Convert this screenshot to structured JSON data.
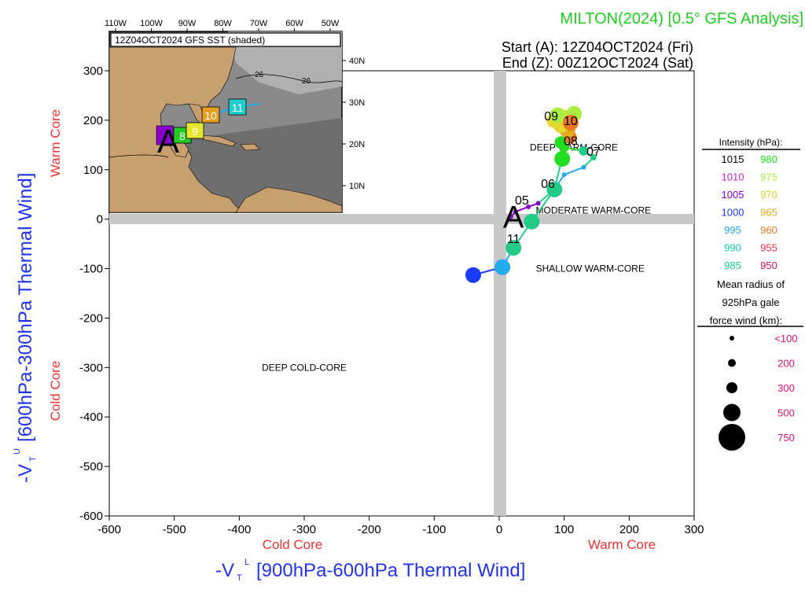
{
  "header": {
    "title": "MILTON(2024) [0.5° GFS Analysis]",
    "start": "Start (A): 12Z04OCT2024 (Fri)",
    "end": "End (Z): 00Z12OCT2024 (Sat)"
  },
  "colors": {
    "title": "#22cc22",
    "axis_title": "#2233ee",
    "core_label": "#ee3333",
    "legend_value": "#dd1177",
    "grid_band": "#c8c8c8"
  },
  "chart_data": {
    "type": "scatter",
    "title": "MILTON(2024) [0.5° GFS Analysis]",
    "xlabel": "-V_T^L [900hPa-600hPa Thermal Wind]",
    "ylabel": "-V_T^U [600hPa-300hPa Thermal Wind]",
    "xlim": [
      -600,
      300
    ],
    "ylim": [
      -600,
      300
    ],
    "xticks": [
      -600,
      -500,
      -400,
      -300,
      -200,
      -100,
      0,
      100,
      200,
      300
    ],
    "yticks": [
      -600,
      -500,
      -400,
      -300,
      -200,
      -100,
      0,
      100,
      200,
      300
    ],
    "x_side_labels": {
      "left": "Cold Core",
      "right": "Warm Core"
    },
    "y_side_labels": {
      "top": "Warm Core",
      "bottom": "Cold Core"
    },
    "regions": [
      {
        "label": "DEEP WARM-CORE",
        "x": 115,
        "y": 145
      },
      {
        "label": "MODERATE WARM-CORE",
        "x": 145,
        "y": 18
      },
      {
        "label": "SHALLOW WARM-CORE",
        "x": 140,
        "y": -100
      },
      {
        "label": "DEEP COLD-CORE",
        "x": -300,
        "y": -300
      }
    ],
    "track": [
      {
        "x": 18,
        "y": 5,
        "p": 1005,
        "r": 50
      },
      {
        "x": 25,
        "y": 15,
        "p": 1005,
        "r": 50
      },
      {
        "x": 45,
        "y": 25,
        "p": 1005,
        "r": 50
      },
      {
        "x": 60,
        "y": 32,
        "p": 1005,
        "r": 50
      },
      {
        "x": 85,
        "y": 60,
        "p": 985,
        "r": 300
      },
      {
        "x": 100,
        "y": 90,
        "p": 995,
        "r": 50
      },
      {
        "x": 130,
        "y": 105,
        "p": 995,
        "r": 80
      },
      {
        "x": 145,
        "y": 125,
        "p": 985,
        "r": 100
      },
      {
        "x": 130,
        "y": 138,
        "p": 985,
        "r": 200
      },
      {
        "x": 100,
        "y": 145,
        "p": 980,
        "r": 200
      },
      {
        "x": 97,
        "y": 122,
        "p": 980,
        "r": 500
      },
      {
        "x": 95,
        "y": 155,
        "p": 980,
        "r": 300
      },
      {
        "x": 110,
        "y": 165,
        "p": 960,
        "r": 300
      },
      {
        "x": 105,
        "y": 180,
        "p": 965,
        "r": 500
      },
      {
        "x": 95,
        "y": 190,
        "p": 970,
        "r": 500
      },
      {
        "x": 85,
        "y": 200,
        "p": 970,
        "r": 500
      },
      {
        "x": 100,
        "y": 205,
        "p": 970,
        "r": 500
      },
      {
        "x": 115,
        "y": 213,
        "p": 975,
        "r": 500
      },
      {
        "x": 90,
        "y": 210,
        "p": 975,
        "r": 500
      },
      {
        "x": 110,
        "y": 195,
        "p": 960,
        "r": 500
      },
      {
        "x": 85,
        "y": 60,
        "p": 985,
        "r": 500
      },
      {
        "x": 50,
        "y": -5,
        "p": 985,
        "r": 500
      },
      {
        "x": 22,
        "y": -58,
        "p": 985,
        "r": 500
      },
      {
        "x": 5,
        "y": -97,
        "p": 995,
        "r": 500
      },
      {
        "x": -40,
        "y": -113,
        "p": 1000,
        "r": 500
      }
    ],
    "track_labels": [
      {
        "text": "05",
        "x": 35,
        "y": 30
      },
      {
        "text": "06",
        "x": 75,
        "y": 63
      },
      {
        "text": "08",
        "x": 110,
        "y": 150
      },
      {
        "text": "07",
        "x": 145,
        "y": 128
      },
      {
        "text": "09",
        "x": 80,
        "y": 200
      },
      {
        "text": "10",
        "x": 110,
        "y": 190
      },
      {
        "text": "11",
        "x": 22,
        "y": -48
      }
    ],
    "start_marker": {
      "text": "A",
      "x": 22,
      "y": 5
    }
  },
  "inset": {
    "title": "12Z04OCT2024 GFS SST (shaded)",
    "lon_labels": [
      "110W",
      "100W",
      "90W",
      "80W",
      "70W",
      "60W",
      "50W"
    ],
    "lat_labels": [
      "40N",
      "30N",
      "20N",
      "10N"
    ],
    "contour_label": "26",
    "start_marker": "A",
    "day_boxes": [
      {
        "text": "8",
        "color": "#22cc22"
      },
      {
        "text": "9",
        "color": "#e6e62e"
      },
      {
        "text": "10",
        "color": "#e6a020"
      },
      {
        "text": "11",
        "color": "#22cccc"
      }
    ]
  },
  "legend": {
    "intensity_title": "Intensity (hPa):",
    "intensity": [
      {
        "value": "1015",
        "color": "#000000"
      },
      {
        "value": "1010",
        "color": "#cc22cc"
      },
      {
        "value": "1005",
        "color": "#8800cc"
      },
      {
        "value": "1000",
        "color": "#1a3cff"
      },
      {
        "value": "995",
        "color": "#22aaee"
      },
      {
        "value": "990",
        "color": "#11ccaa"
      },
      {
        "value": "985",
        "color": "#22cc88"
      },
      {
        "value": "980",
        "color": "#22dd22"
      },
      {
        "value": "975",
        "color": "#aaee44"
      },
      {
        "value": "970",
        "color": "#e6d830"
      },
      {
        "value": "965",
        "color": "#e6aa20"
      },
      {
        "value": "960",
        "color": "#ee7722"
      },
      {
        "value": "955",
        "color": "#ee3344"
      },
      {
        "value": "950",
        "color": "#cc1166"
      }
    ],
    "radius_title_lines": [
      "Mean radius of",
      "925hPa gale",
      "force wind (km):"
    ],
    "radius": [
      {
        "value": "<100",
        "r": 3
      },
      {
        "value": "200",
        "r": 5
      },
      {
        "value": "300",
        "r": 7
      },
      {
        "value": "500",
        "r": 11
      },
      {
        "value": "750",
        "r": 17
      }
    ]
  }
}
